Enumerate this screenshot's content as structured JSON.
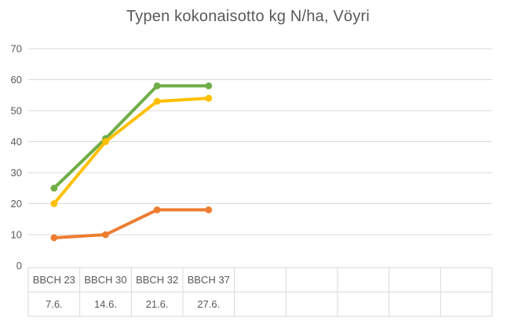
{
  "chart_data": {
    "type": "line",
    "title": "Typen kokonaisotto kg N/ha, Vöyri",
    "x_axis": {
      "group_labels": [
        "BBCH 23",
        "BBCH 30",
        "BBCH 32",
        "BBCH 37"
      ],
      "date_labels": [
        "7.6.",
        "14.6.",
        "21.6.",
        "27.6."
      ],
      "empty_trailing_cells": 5
    },
    "series": [
      {
        "name": "green-series",
        "color": "#70AD47",
        "values": [
          25,
          41,
          58,
          58
        ]
      },
      {
        "name": "yellow-series",
        "color": "#FFC000",
        "values": [
          20,
          40,
          53,
          54
        ]
      },
      {
        "name": "orange-series",
        "color": "#ED7D31",
        "values": [
          9,
          10,
          18,
          18
        ]
      }
    ],
    "xlabel": "",
    "ylabel": "",
    "ylim": [
      0,
      70
    ],
    "yticks": [
      0,
      10,
      20,
      30,
      40,
      50,
      60,
      70
    ],
    "grid": true,
    "legend": "none",
    "colors": {
      "text": "#595959",
      "gridline": "#D9D9D9",
      "background": "#FFFFFF"
    }
  }
}
